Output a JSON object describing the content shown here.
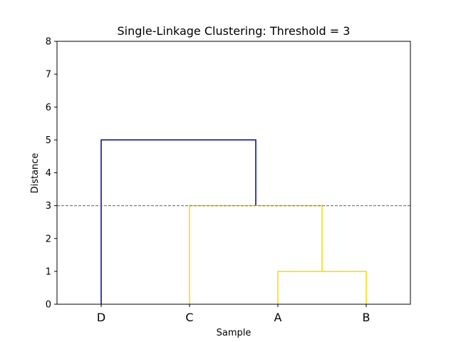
{
  "chart_data": {
    "type": "dendrogram",
    "title": "Single-Linkage Clustering: Threshold = 3",
    "xlabel": "Sample",
    "ylabel": "Distance",
    "ylim": [
      0,
      8
    ],
    "yticks": [
      0,
      1,
      2,
      3,
      4,
      5,
      6,
      7,
      8
    ],
    "leaves": [
      "D",
      "C",
      "A",
      "B"
    ],
    "threshold": 3,
    "threshold_color": "#808080",
    "links": [
      {
        "left": "A",
        "right": "B",
        "height": 1,
        "color": "#FFD700"
      },
      {
        "left": "C",
        "right": "A+B",
        "height": 3,
        "color": "#FFD700"
      },
      {
        "left": "D",
        "right": "C+A+B",
        "height": 5,
        "color": "#00008B"
      }
    ],
    "grid": false
  }
}
